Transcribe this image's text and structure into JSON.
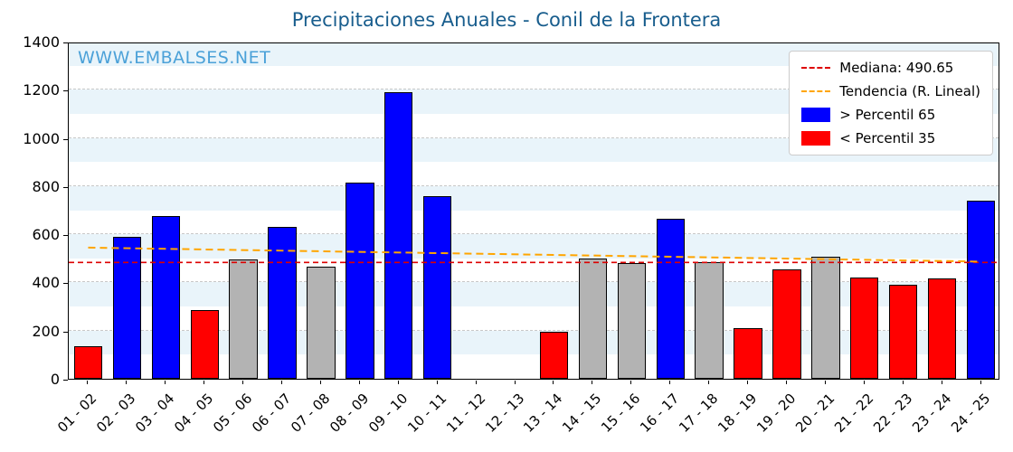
{
  "title": "Precipitaciones Anuales - Conil de la Frontera",
  "watermark": "WWW.EMBALSES.NET",
  "legend": {
    "median_label": "Mediana: 490.65",
    "trend_label": "Tendencia (R. Lineal)",
    "above_label": "> Percentil 65",
    "below_label": "< Percentil 35"
  },
  "colors": {
    "title": "#185d8d",
    "watermark": "#4ba1d8",
    "bar_above": "#0000ff",
    "bar_below": "#ff0000",
    "bar_mid": "#b3b3b3",
    "median_line": "#dd0000",
    "trend_line": "#ffa500",
    "stripe": "#e9f4fa",
    "grid": "#c8c8c8"
  },
  "chart_data": {
    "type": "bar",
    "title": "Precipitaciones Anuales - Conil de la Frontera",
    "xlabel": "",
    "ylabel": "",
    "ylim": [
      0,
      1400
    ],
    "yticks": [
      0,
      200,
      400,
      600,
      800,
      1000,
      1200,
      1400
    ],
    "grid": "horizontal-dashed",
    "legend_position": "top-right",
    "categories": [
      "01 - 02",
      "02 - 03",
      "03 - 04",
      "04 - 05",
      "05 - 06",
      "06 - 07",
      "07 - 08",
      "08 - 09",
      "09 - 10",
      "10 - 11",
      "11 - 12",
      "12 - 13",
      "13 - 14",
      "14 - 15",
      "15 - 16",
      "16 - 17",
      "17 - 18",
      "18 - 19",
      "19 - 20",
      "20 - 21",
      "21 - 22",
      "22 - 23",
      "23 - 24",
      "24 - 25"
    ],
    "values": [
      135,
      590,
      675,
      285,
      495,
      630,
      465,
      815,
      1190,
      760,
      0,
      0,
      195,
      500,
      480,
      665,
      485,
      210,
      455,
      505,
      420,
      390,
      415,
      740
    ],
    "bar_classes": [
      "below",
      "above",
      "above",
      "below",
      "mid",
      "above",
      "mid",
      "above",
      "above",
      "above",
      "none",
      "none",
      "below",
      "mid",
      "mid",
      "above",
      "mid",
      "below",
      "below",
      "mid",
      "below",
      "below",
      "below",
      "above"
    ],
    "median": 490.65,
    "trend": {
      "start": 552,
      "end": 494
    }
  }
}
